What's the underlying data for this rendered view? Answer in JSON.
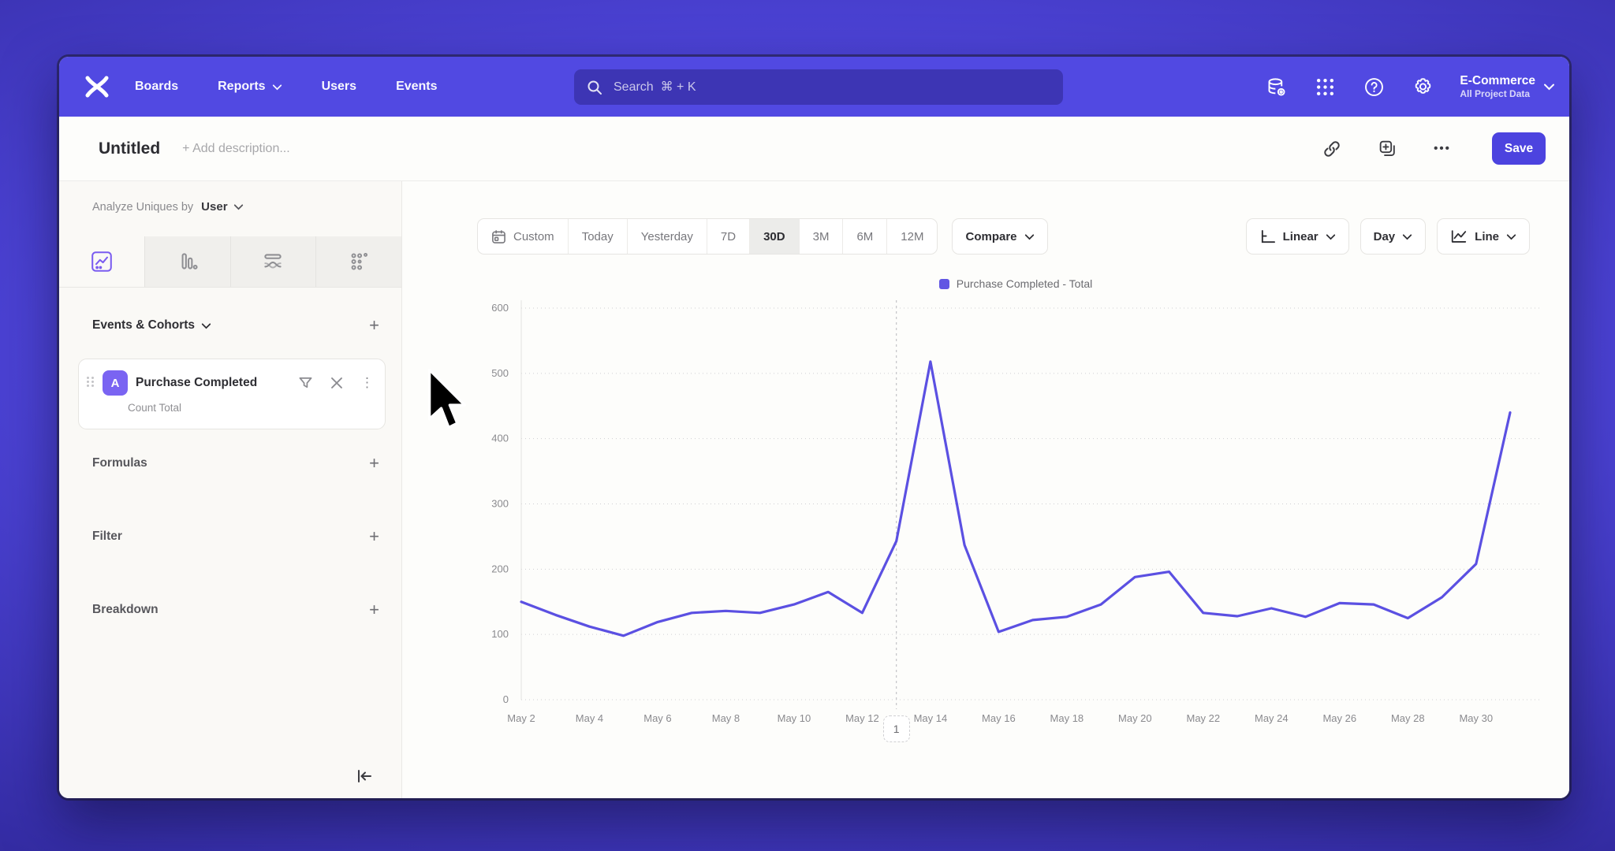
{
  "topnav": {
    "brand": "mixpanel",
    "items": [
      {
        "label": "Boards",
        "has_menu": false
      },
      {
        "label": "Reports",
        "has_menu": true
      },
      {
        "label": "Users",
        "has_menu": false
      },
      {
        "label": "Events",
        "has_menu": false
      }
    ],
    "search": {
      "placeholder": "Search  ⌘ + K"
    },
    "project": {
      "name": "E-Commerce",
      "subtitle": "All Project Data"
    }
  },
  "header": {
    "title": "Untitled",
    "description_placeholder": "+ Add description...",
    "more_label": "•••",
    "save_label": "Save"
  },
  "sidebar": {
    "analyze_label": "Analyze Uniques by",
    "analyze_value": "User",
    "events_header": "Events & Cohorts",
    "event_card": {
      "badge": "A",
      "title": "Purchase Completed",
      "subtitle": "Count Total"
    },
    "formulas_label": "Formulas",
    "filter_label": "Filter",
    "breakdown_label": "Breakdown"
  },
  "toolbar": {
    "ranges": [
      "Custom",
      "Today",
      "Yesterday",
      "7D",
      "30D",
      "3M",
      "6M",
      "12M"
    ],
    "active_range": "30D",
    "compare_label": "Compare",
    "scale_label": "Linear",
    "interval_label": "Day",
    "chart_type_label": "Line"
  },
  "chart_data": {
    "type": "line",
    "title": "",
    "x": [
      "May 2",
      "May 3",
      "May 4",
      "May 5",
      "May 6",
      "May 7",
      "May 8",
      "May 9",
      "May 10",
      "May 11",
      "May 12",
      "May 13",
      "May 14",
      "May 15",
      "May 16",
      "May 17",
      "May 18",
      "May 19",
      "May 20",
      "May 21",
      "May 22",
      "May 23",
      "May 24",
      "May 25",
      "May 26",
      "May 27",
      "May 28",
      "May 29",
      "May 30",
      "May 31"
    ],
    "series": [
      {
        "name": "Purchase Completed - Total",
        "color": "#5b50e2",
        "values": [
          150,
          130,
          112,
          98,
          119,
          133,
          136,
          133,
          146,
          165,
          133,
          243,
          518,
          237,
          104,
          122,
          127,
          146,
          188,
          196,
          133,
          128,
          140,
          127,
          148,
          146,
          125,
          157,
          208,
          440
        ]
      }
    ],
    "x_tick_labels": [
      "May 2",
      "May 4",
      "May 6",
      "May 8",
      "May 10",
      "May 12",
      "May 14",
      "May 16",
      "May 18",
      "May 20",
      "May 22",
      "May 24",
      "May 26",
      "May 28",
      "May 30"
    ],
    "ylim": [
      0,
      600
    ],
    "y_ticks": [
      0,
      100,
      200,
      300,
      400,
      500,
      600
    ],
    "grid": "horizontal-dotted",
    "legend_position": "top-center",
    "annotations": [
      {
        "label": "1",
        "x": "May 13"
      }
    ]
  },
  "colors": {
    "nav": "#5149e2",
    "accent": "#4c43df",
    "line": "#5b50e2",
    "grid": "#cfcfd2",
    "axis_text": "#8a8a8e",
    "annotation_line": "#c4c4c8"
  }
}
